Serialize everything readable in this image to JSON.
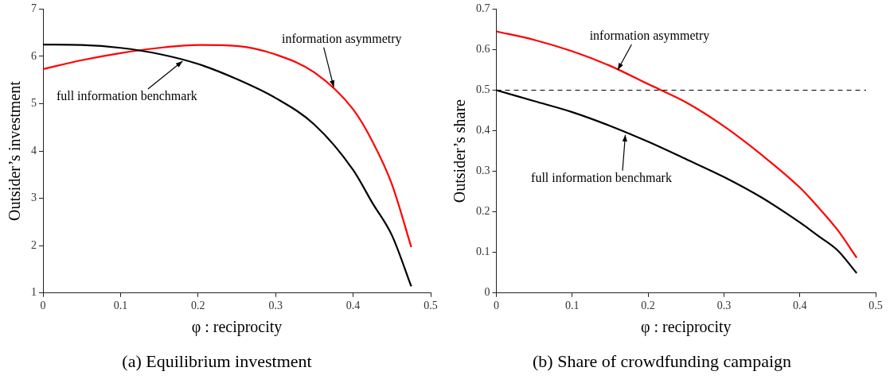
{
  "chart_data": [
    {
      "type": "line",
      "title": "(a) Equilibrium investment",
      "xlabel": "φ : reciprocity",
      "ylabel": "Outsider’s investment",
      "x": [
        0,
        0.05,
        0.1,
        0.15,
        0.2,
        0.25,
        0.3,
        0.35,
        0.4,
        0.425,
        0.45,
        0.475
      ],
      "xlim": [
        0,
        0.5
      ],
      "xticks": [
        0,
        0.1,
        0.2,
        0.3,
        0.4,
        0.5
      ],
      "ylim": [
        1,
        7
      ],
      "yticks": [
        1,
        2,
        3,
        4,
        5,
        6,
        7
      ],
      "grid": false,
      "legend": false,
      "marker": "none",
      "line_style": "solid",
      "series": [
        {
          "color": "#000000",
          "values": [
            6.25,
            6.24,
            6.18,
            6.05,
            5.84,
            5.52,
            5.12,
            4.56,
            3.6,
            2.9,
            2.22,
            1.14
          ]
        },
        {
          "color": "#ff0000",
          "values": [
            5.73,
            5.92,
            6.07,
            6.18,
            6.24,
            6.22,
            6.04,
            5.66,
            4.88,
            4.2,
            3.3,
            1.97
          ]
        }
      ],
      "annotations": [
        {
          "text": "information asymmetry",
          "x": 0.375,
          "y": 5.35
        },
        {
          "text": "full information benchmark",
          "x": 0.18,
          "y": 5.9
        }
      ]
    },
    {
      "type": "line",
      "title": "(b) Share of crowdfunding campaign",
      "xlabel": "φ : reciprocity",
      "ylabel": "Outsider’s share",
      "x": [
        0,
        0.05,
        0.1,
        0.15,
        0.2,
        0.25,
        0.3,
        0.35,
        0.4,
        0.425,
        0.45,
        0.475
      ],
      "xlim": [
        0,
        0.5
      ],
      "xticks": [
        0,
        0.1,
        0.2,
        0.3,
        0.4,
        0.5
      ],
      "ylim": [
        0,
        0.7
      ],
      "yticks": [
        0,
        0.1,
        0.2,
        0.3,
        0.4,
        0.5,
        0.6,
        0.7
      ],
      "grid": false,
      "legend": false,
      "marker": "none",
      "line_style": "solid",
      "series": [
        {
          "color": "#000000",
          "values": [
            0.5,
            0.473,
            0.446,
            0.412,
            0.373,
            0.33,
            0.286,
            0.235,
            0.174,
            0.14,
            0.105,
            0.049
          ]
        },
        {
          "color": "#ff0000",
          "values": [
            0.645,
            0.624,
            0.596,
            0.56,
            0.515,
            0.47,
            0.411,
            0.34,
            0.26,
            0.21,
            0.155,
            0.087
          ]
        }
      ],
      "ref_lines": [
        {
          "axis": "y",
          "value": 0.5,
          "color": "#000000",
          "line_style": "dashed"
        }
      ],
      "annotations": [
        {
          "text": "information asymmetry",
          "x": 0.16,
          "y": 0.55
        },
        {
          "text": "full information benchmark",
          "x": 0.17,
          "y": 0.39
        }
      ]
    }
  ]
}
